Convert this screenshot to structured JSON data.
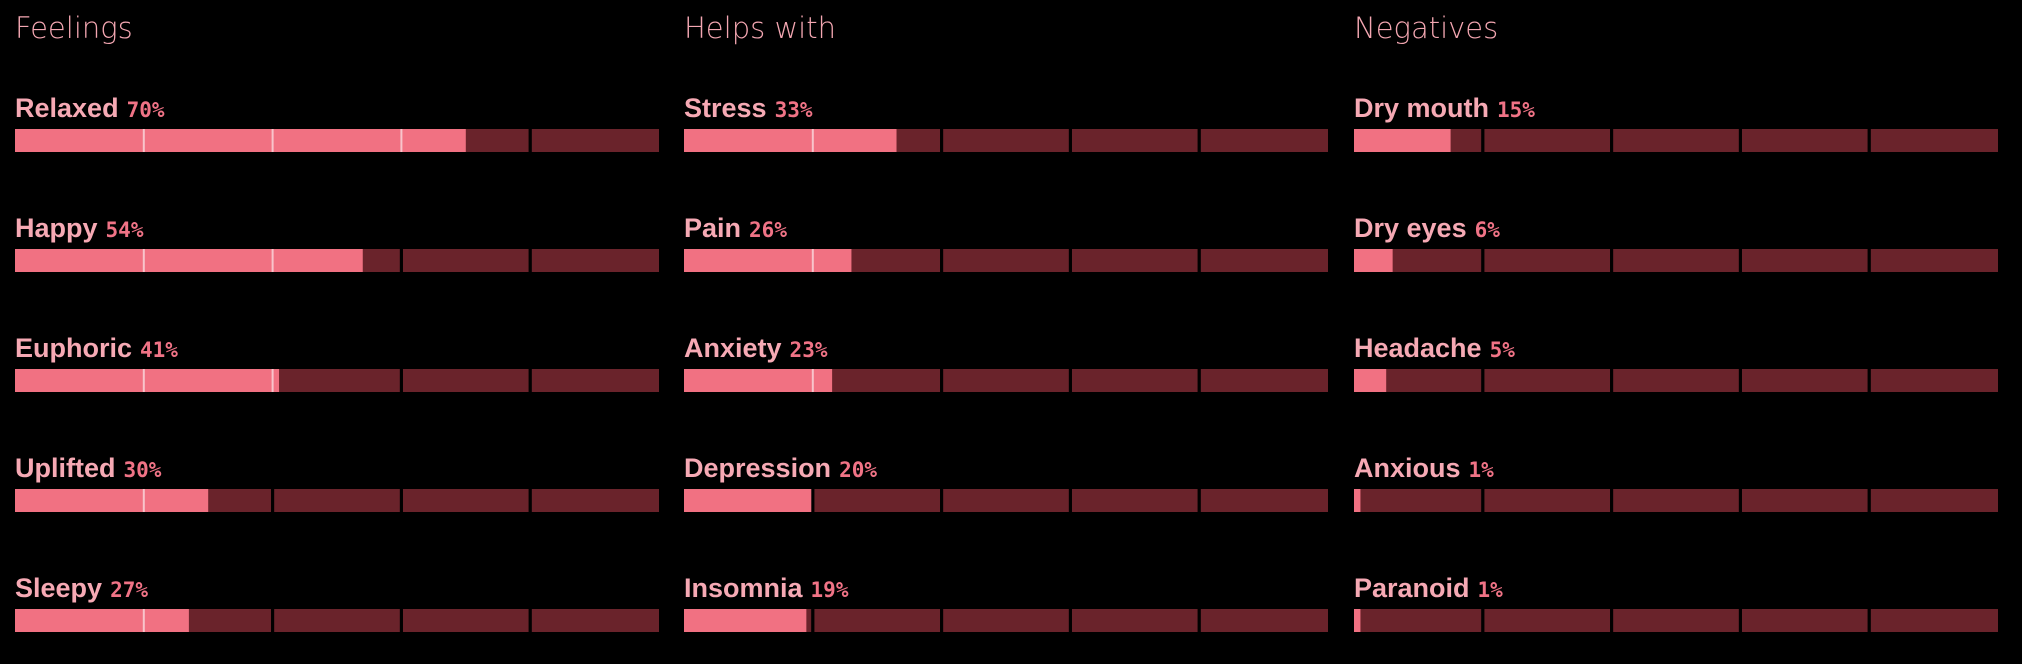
{
  "columns": [
    {
      "title": "Feelings",
      "items": [
        {
          "name": "Relaxed",
          "value": 70,
          "label": "70%"
        },
        {
          "name": "Happy",
          "value": 54,
          "label": "54%"
        },
        {
          "name": "Euphoric",
          "value": 41,
          "label": "41%"
        },
        {
          "name": "Uplifted",
          "value": 30,
          "label": "30%"
        },
        {
          "name": "Sleepy",
          "value": 27,
          "label": "27%"
        }
      ]
    },
    {
      "title": "Helps with",
      "items": [
        {
          "name": "Stress",
          "value": 33,
          "label": "33%"
        },
        {
          "name": "Pain",
          "value": 26,
          "label": "26%"
        },
        {
          "name": "Anxiety",
          "value": 23,
          "label": "23%"
        },
        {
          "name": "Depression",
          "value": 20,
          "label": "20%"
        },
        {
          "name": "Insomnia",
          "value": 19,
          "label": "19%"
        }
      ]
    },
    {
      "title": "Negatives",
      "items": [
        {
          "name": "Dry mouth",
          "value": 15,
          "label": "15%"
        },
        {
          "name": "Dry eyes",
          "value": 6,
          "label": "6%"
        },
        {
          "name": "Headache",
          "value": 5,
          "label": "5%"
        },
        {
          "name": "Anxious",
          "value": 1,
          "label": "1%"
        },
        {
          "name": "Paranoid",
          "value": 1,
          "label": "1%"
        }
      ]
    }
  ]
}
